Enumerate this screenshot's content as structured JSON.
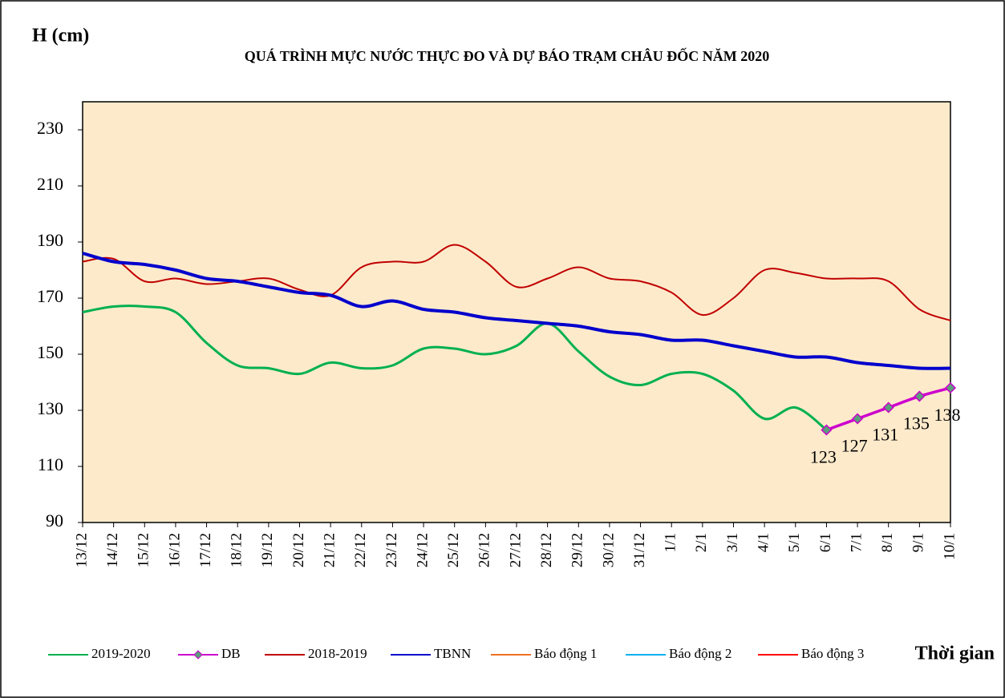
{
  "chart_data": {
    "type": "line",
    "title": "QUÁ TRÌNH MỰC NƯỚC THỰC ĐO VÀ DỰ BÁO TRẠM CHÂU ĐỐC NĂM 2020",
    "y_label": "H (cm)",
    "x_label": "Thời gian",
    "categories": [
      "13/12",
      "14/12",
      "15/12",
      "16/12",
      "17/12",
      "18/12",
      "19/12",
      "20/12",
      "21/12",
      "22/12",
      "23/12",
      "24/12",
      "25/12",
      "26/12",
      "27/12",
      "28/12",
      "29/12",
      "30/12",
      "31/12",
      "1/1",
      "2/1",
      "3/1",
      "4/1",
      "5/1",
      "6/1",
      "7/1",
      "8/1",
      "9/1",
      "10/1"
    ],
    "ylim": [
      90,
      240
    ],
    "yticks": [
      90,
      110,
      130,
      150,
      170,
      190,
      210,
      230
    ],
    "background": "#fdeacb",
    "legend": "bottom",
    "series": [
      {
        "name": "2019-2020",
        "color": "#00b050",
        "values": [
          165,
          167,
          167,
          165,
          154,
          146,
          145,
          143,
          147,
          145,
          146,
          152,
          152,
          150,
          153,
          161,
          151,
          142,
          139,
          143,
          143,
          137,
          127,
          131,
          123,
          null,
          null,
          null,
          null
        ]
      },
      {
        "name": "DB",
        "color": "#cc00cc",
        "marker": "diamond",
        "marker_color": "#5a9e7a",
        "values": [
          null,
          null,
          null,
          null,
          null,
          null,
          null,
          null,
          null,
          null,
          null,
          null,
          null,
          null,
          null,
          null,
          null,
          null,
          null,
          null,
          null,
          null,
          null,
          null,
          123,
          127,
          131,
          135,
          138
        ]
      },
      {
        "name": "2018-2019",
        "color": "#c00000",
        "values": [
          183,
          184,
          176,
          177,
          175,
          176,
          177,
          173,
          171,
          181,
          183,
          183,
          189,
          183,
          174,
          177,
          181,
          177,
          176,
          172,
          164,
          170,
          180,
          179,
          177,
          177,
          176,
          166,
          162
        ]
      },
      {
        "name": "TBNN",
        "color": "#0000cc",
        "values": [
          186,
          183,
          182,
          180,
          177,
          176,
          174,
          172,
          171,
          167,
          169,
          166,
          165,
          163,
          162,
          161,
          160,
          158,
          157,
          155,
          155,
          153,
          151,
          149,
          149,
          147,
          146,
          145,
          145
        ]
      },
      {
        "name": "Báo động 1",
        "color": "#f07020",
        "values": [
          null,
          null,
          null,
          null,
          null,
          null,
          null,
          null,
          null,
          null,
          null,
          null,
          null,
          null,
          null,
          null,
          null,
          null,
          null,
          null,
          null,
          null,
          null,
          null,
          null,
          null,
          null,
          null,
          null
        ]
      },
      {
        "name": "Báo động 2",
        "color": "#00b0f0",
        "values": [
          null,
          null,
          null,
          null,
          null,
          null,
          null,
          null,
          null,
          null,
          null,
          null,
          null,
          null,
          null,
          null,
          null,
          null,
          null,
          null,
          null,
          null,
          null,
          null,
          null,
          null,
          null,
          null,
          null
        ]
      },
      {
        "name": "Báo động 3",
        "color": "#ff0000",
        "values": [
          null,
          null,
          null,
          null,
          null,
          null,
          null,
          null,
          null,
          null,
          null,
          null,
          null,
          null,
          null,
          null,
          null,
          null,
          null,
          null,
          null,
          null,
          null,
          null,
          null,
          null,
          null,
          null,
          null
        ]
      }
    ]
  }
}
